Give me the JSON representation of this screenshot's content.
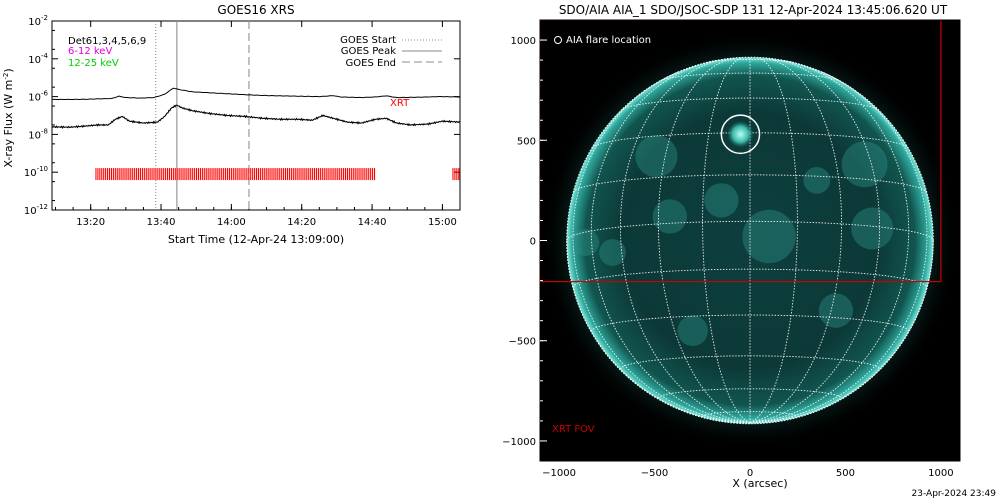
{
  "footer_timestamp": "23-Apr-2024 23:49",
  "chart_data": [
    {
      "type": "line",
      "title": "GOES16 XRS",
      "xlabel": "Start Time (12-Apr-24 13:09:00)",
      "ylabel": "X-ray Flux (W m",
      "ylabel_superscript": "-2",
      "ylabel_close": ")",
      "log_y": true,
      "y_ticks": [
        {
          "base": "10",
          "exp": "-2",
          "v": -2
        },
        {
          "base": "10",
          "exp": "-4",
          "v": -4
        },
        {
          "base": "10",
          "exp": "-6",
          "v": -6
        },
        {
          "base": "10",
          "exp": "-8",
          "v": -8
        },
        {
          "base": "10",
          "exp": "-10",
          "v": -10
        },
        {
          "base": "10",
          "exp": "-12",
          "v": -12
        }
      ],
      "ylim_log10": [
        -12,
        -2
      ],
      "xlim_minutes": [
        0,
        116
      ],
      "x_ticks": [
        {
          "label": "13:20",
          "m": 11
        },
        {
          "label": "13:40",
          "m": 31
        },
        {
          "label": "14:00",
          "m": 51
        },
        {
          "label": "14:20",
          "m": 71
        },
        {
          "label": "14:40",
          "m": 91
        },
        {
          "label": "15:00",
          "m": 111
        }
      ],
      "left_legend": [
        {
          "text": "Det61,3,4,5,6,9",
          "color": "#000000"
        },
        {
          "text": "6-12 keV",
          "color": "#e000e0"
        },
        {
          "text": "12-25 keV",
          "color": "#00cc00"
        }
      ],
      "right_legend": [
        {
          "text": "GOES Start",
          "style": "dotted"
        },
        {
          "text": "GOES Peak",
          "style": "solid"
        },
        {
          "text": "GOES End",
          "style": "dashed"
        }
      ],
      "event_lines": {
        "start_min": 29.5,
        "peak_min": 35.5,
        "end_min": 56
      },
      "xrt_label": "XRT",
      "xrt_color": "#ff0000",
      "xrt_intervals": [
        [
          12.5,
          92
        ],
        [
          114,
          116
        ]
      ],
      "xrt_level_log10": -10.1,
      "series": [
        {
          "key": "long",
          "values_log10": [
            [
              0,
              -6.15
            ],
            [
              5,
              -6.15
            ],
            [
              10,
              -6.14
            ],
            [
              13,
              -6.12
            ],
            [
              17,
              -6.1
            ],
            [
              19,
              -5.98
            ],
            [
              21,
              -6.05
            ],
            [
              25,
              -6.08
            ],
            [
              29,
              -6.05
            ],
            [
              32,
              -5.88
            ],
            [
              34.5,
              -5.55
            ],
            [
              36,
              -5.62
            ],
            [
              40,
              -5.75
            ],
            [
              45,
              -5.8
            ],
            [
              50,
              -5.85
            ],
            [
              55,
              -5.9
            ],
            [
              60,
              -5.94
            ],
            [
              65,
              -5.96
            ],
            [
              70,
              -5.98
            ],
            [
              76,
              -6.0
            ],
            [
              80,
              -5.95
            ],
            [
              82,
              -6.02
            ],
            [
              88,
              -6.05
            ],
            [
              92,
              -6.02
            ],
            [
              95,
              -5.96
            ],
            [
              98,
              -6.05
            ],
            [
              105,
              -6.03
            ],
            [
              110,
              -6.0
            ],
            [
              116,
              -6.02
            ]
          ]
        },
        {
          "key": "short",
          "values_log10": [
            [
              0,
              -7.6
            ],
            [
              5,
              -7.62
            ],
            [
              10,
              -7.55
            ],
            [
              13,
              -7.5
            ],
            [
              16,
              -7.5
            ],
            [
              18,
              -7.2
            ],
            [
              20,
              -7.05
            ],
            [
              22,
              -7.3
            ],
            [
              26,
              -7.4
            ],
            [
              30,
              -7.35
            ],
            [
              32,
              -7.05
            ],
            [
              34,
              -6.6
            ],
            [
              35.5,
              -6.45
            ],
            [
              37,
              -6.6
            ],
            [
              40,
              -6.75
            ],
            [
              45,
              -6.9
            ],
            [
              50,
              -7.0
            ],
            [
              55,
              -7.05
            ],
            [
              60,
              -7.15
            ],
            [
              65,
              -7.2
            ],
            [
              70,
              -7.2
            ],
            [
              74,
              -7.25
            ],
            [
              77,
              -7.0
            ],
            [
              80,
              -7.15
            ],
            [
              84,
              -7.35
            ],
            [
              88,
              -7.4
            ],
            [
              92,
              -7.2
            ],
            [
              95,
              -7.15
            ],
            [
              98,
              -7.4
            ],
            [
              102,
              -7.5
            ],
            [
              107,
              -7.45
            ],
            [
              111,
              -7.3
            ],
            [
              116,
              -7.35
            ]
          ]
        }
      ]
    },
    {
      "type": "image",
      "title": "SDO/AIA AIA_1 SDO/JSOC-SDP 131 12-Apr-2024 13:45:06.620 UT",
      "xlabel": "X (arcsec)",
      "legend": "AIA flare location",
      "fov_label": "XRT FOV",
      "fov_color": "#cc0000",
      "x_ticks": [
        -1000,
        -500,
        0,
        500,
        1000
      ],
      "y_ticks": [
        1000,
        500,
        0,
        -500,
        -1000
      ],
      "x_tick_labels": [
        "−1000",
        "−500",
        "0",
        "500",
        "1000"
      ],
      "y_tick_labels": [
        "1000",
        "500",
        "0",
        "−500",
        "−1000"
      ],
      "xlim": [
        -1100,
        1100
      ],
      "ylim": [
        -1100,
        1100
      ],
      "solar_radius_arcsec": 960,
      "flare_center": [
        -50,
        530
      ],
      "flare_radius_arcsec": 100,
      "xrt_fov": {
        "x0": -1100,
        "x1": 1000,
        "y0": -205,
        "y1": 1100
      }
    }
  ]
}
